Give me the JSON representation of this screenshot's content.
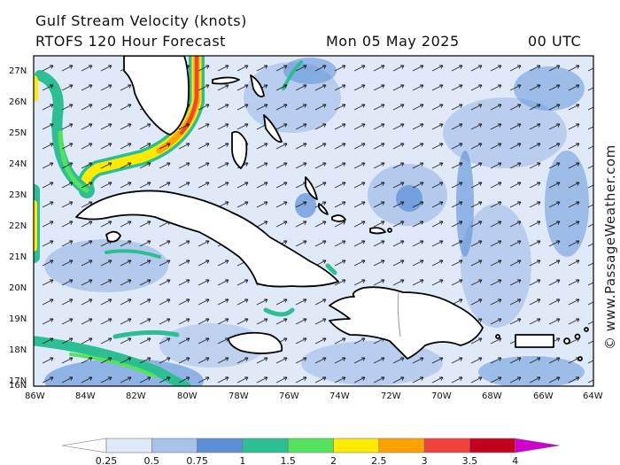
{
  "header": {
    "title": "Gulf Stream Velocity (knots)",
    "subtitle": "RTOFS 120 Hour Forecast",
    "date": "Mon 05 May 2025",
    "time": "00 UTC"
  },
  "watermark": "© www.PassageWeather.com",
  "map": {
    "lat_labels": [
      "27N",
      "26N",
      "25N",
      "24N",
      "23N",
      "22N",
      "21N",
      "20N",
      "19N",
      "18N",
      "17N",
      "16N"
    ],
    "lon_labels": [
      "86W",
      "84W",
      "82W",
      "80W",
      "78W",
      "76W",
      "74W",
      "72W",
      "70W",
      "68W",
      "66W",
      "64W"
    ],
    "lat_range": [
      16,
      27.5
    ],
    "lon_range": [
      -86,
      -64
    ]
  },
  "colorbar": {
    "labels": [
      "0.25",
      "0.5",
      "0.75",
      "1",
      "1.5",
      "2",
      "2.5",
      "3",
      "3.5",
      "4"
    ],
    "colors": [
      "#ffffff",
      "#dfe9f7",
      "#a8c2ea",
      "#5b8fd8",
      "#2cbf93",
      "#55e35d",
      "#ffeb00",
      "#ffa200",
      "#f2403a",
      "#c4001c",
      "#d000d0"
    ]
  },
  "colors": {
    "sea_low": "#dfe9f7",
    "sea_mid": "#a8c2ea",
    "sea_high": "#5b8fd8",
    "current_green": "#2cbf93",
    "current_yellow": "#ffeb00",
    "current_orange": "#ffa200",
    "current_red": "#f2403a",
    "land": "#ffffff"
  }
}
